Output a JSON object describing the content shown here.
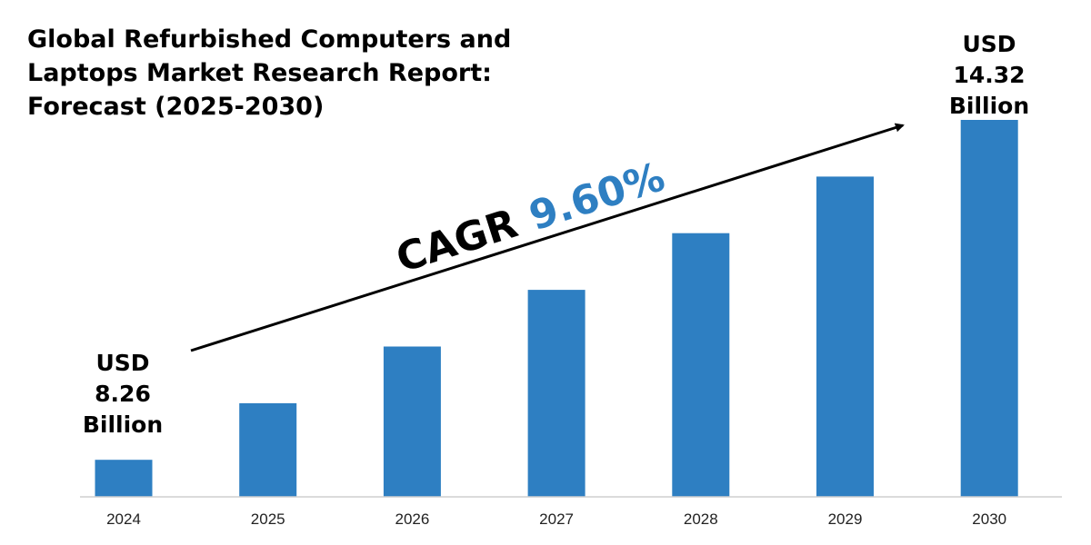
{
  "colors": {
    "bar": "#2e7fc2",
    "cagr_value": "#2e7fc2",
    "axis": "#cfcfcf",
    "text": "#000000"
  },
  "title_lines": [
    "Global Refurbished Computers and",
    "Laptops Market Research Report:",
    "Forecast (2025-2030)"
  ],
  "cagr": {
    "label": "CAGR",
    "value": "9.60%"
  },
  "callouts": {
    "start": [
      "USD",
      "8.26",
      "Billion"
    ],
    "end": [
      "USD",
      "14.32",
      "Billion"
    ]
  },
  "chart_data": {
    "type": "bar",
    "categories": [
      "2024",
      "2025",
      "2026",
      "2027",
      "2028",
      "2029",
      "2030"
    ],
    "values": [
      8.26,
      9.27,
      10.28,
      11.29,
      12.3,
      13.31,
      14.32
    ],
    "title": "Global Refurbished Computers and Laptops Market Research Report: Forecast (2025-2030)",
    "xlabel": "",
    "ylabel": "",
    "ylim": [
      0,
      14.32
    ],
    "grid": false,
    "legend": "none",
    "annotations": [
      "USD 8.26 Billion",
      "USD 14.32 Billion",
      "CAGR 9.60%"
    ]
  }
}
